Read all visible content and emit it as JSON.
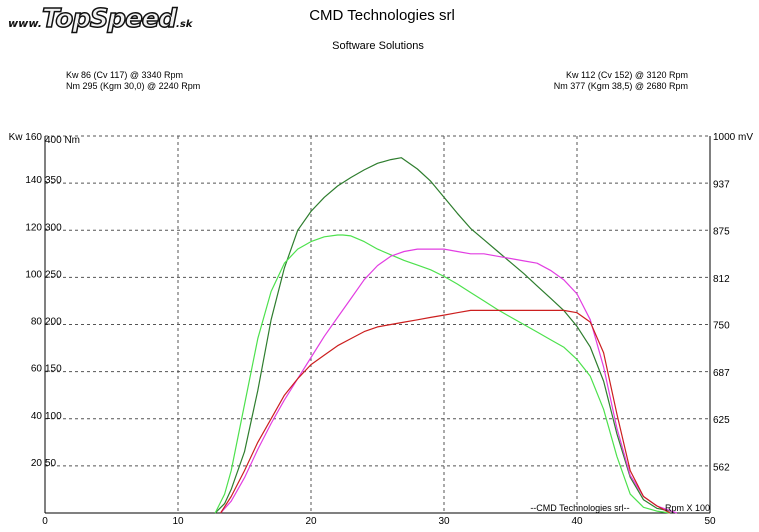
{
  "logo": {
    "prefix": "www.",
    "name": "TopSpeed",
    "suffix": ".sk"
  },
  "header": {
    "title": "CMD Technologies srl",
    "subtitle": "Software Solutions"
  },
  "stats": {
    "left": [
      "Kw 86 (Cv 117) @ 3340 Rpm",
      "Nm 295 (Kgm 30,0) @ 2240 Rpm"
    ],
    "right": [
      "Kw 112 (Cv 152) @ 3120 Rpm",
      "Nm 377 (Kgm 38,5) @ 2680 Rpm"
    ]
  },
  "chart_data": {
    "type": "line",
    "xlabel": "Rpm X 100",
    "x_ticks": [
      0,
      10,
      20,
      30,
      40,
      50
    ],
    "xlim": [
      0,
      50
    ],
    "axes": {
      "kw": {
        "label": "Kw",
        "ticks": [
          20,
          40,
          60,
          80,
          100,
          120,
          140,
          160
        ],
        "range": [
          0,
          160
        ]
      },
      "nm": {
        "label": "Nm",
        "ticks": [
          50,
          100,
          150,
          200,
          250,
          300,
          350,
          400
        ],
        "range": [
          0,
          400
        ]
      },
      "mv": {
        "label": "mV",
        "ticks": [
          562,
          625,
          687,
          750,
          812,
          875,
          937,
          1000
        ],
        "range": [
          500,
          1000
        ]
      }
    },
    "watermark": "--CMD Technologies srl--",
    "grid": true,
    "series": [
      {
        "color": "#2e7d2e",
        "axis": "nm",
        "x": [
          12.8,
          13.5,
          14,
          15,
          16,
          17,
          18,
          19,
          20,
          21,
          22,
          23,
          24,
          25,
          26,
          26.8,
          28,
          29,
          30,
          31,
          32,
          33,
          34,
          35,
          36,
          37,
          38,
          39,
          40,
          41,
          42,
          43,
          44,
          45,
          46,
          47,
          47.5
        ],
        "y": [
          0,
          10,
          25,
          65,
          130,
          205,
          260,
          300,
          320,
          335,
          347,
          356,
          364,
          371,
          375,
          377,
          365,
          352,
          335,
          318,
          302,
          290,
          278,
          266,
          254,
          241,
          228,
          215,
          198,
          176,
          140,
          84,
          38,
          14,
          5,
          2,
          0
        ]
      },
      {
        "color": "#4de14d",
        "axis": "nm",
        "x": [
          12.8,
          13.5,
          14,
          15,
          16,
          17,
          18,
          19,
          20,
          21,
          22,
          22.4,
          23,
          24,
          25,
          26,
          27,
          28,
          29,
          30,
          31,
          32,
          33,
          34,
          35,
          36,
          37,
          38,
          39,
          40,
          41,
          42,
          43,
          44,
          45,
          46,
          47
        ],
        "y": [
          0,
          20,
          45,
          115,
          185,
          235,
          265,
          280,
          288,
          293,
          295,
          295,
          294,
          288,
          280,
          274,
          268,
          263,
          258,
          251,
          243,
          234,
          225,
          216,
          208,
          200,
          192,
          184,
          176,
          163,
          145,
          110,
          60,
          20,
          6,
          2,
          0
        ]
      },
      {
        "color": "#e23ee2",
        "axis": "kw",
        "x": [
          13.2,
          14,
          15,
          16,
          17,
          18,
          19,
          20,
          21,
          22,
          23,
          24,
          25,
          26,
          27,
          28,
          29,
          30,
          31,
          32,
          33,
          34,
          35,
          36,
          37,
          38,
          39,
          40,
          41,
          42,
          43,
          44,
          45,
          46,
          47,
          47.5
        ],
        "y": [
          0,
          5,
          15,
          27,
          38,
          48,
          57,
          66,
          75,
          83,
          91,
          99,
          105,
          109,
          111,
          112,
          112,
          112,
          111,
          110,
          110,
          109,
          108,
          107,
          106,
          103,
          99,
          93,
          82,
          62,
          36,
          16,
          7,
          3,
          1,
          0
        ]
      },
      {
        "color": "#cc1f1f",
        "axis": "kw",
        "x": [
          13.2,
          14,
          15,
          16,
          17,
          18,
          19,
          20,
          21,
          22,
          23,
          24,
          25,
          26,
          27,
          28,
          29,
          30,
          31,
          32,
          33,
          33.4,
          34,
          35,
          36,
          37,
          38,
          39,
          40,
          41,
          42,
          43,
          44,
          45,
          46,
          47
        ],
        "y": [
          0,
          7,
          18,
          30,
          40,
          50,
          57,
          63,
          67,
          71,
          74,
          77,
          79,
          80,
          81,
          82,
          83,
          84,
          85,
          86,
          86,
          86,
          86,
          86,
          86,
          86,
          86,
          86,
          85,
          81,
          68,
          42,
          18,
          7,
          3,
          0
        ]
      }
    ]
  }
}
